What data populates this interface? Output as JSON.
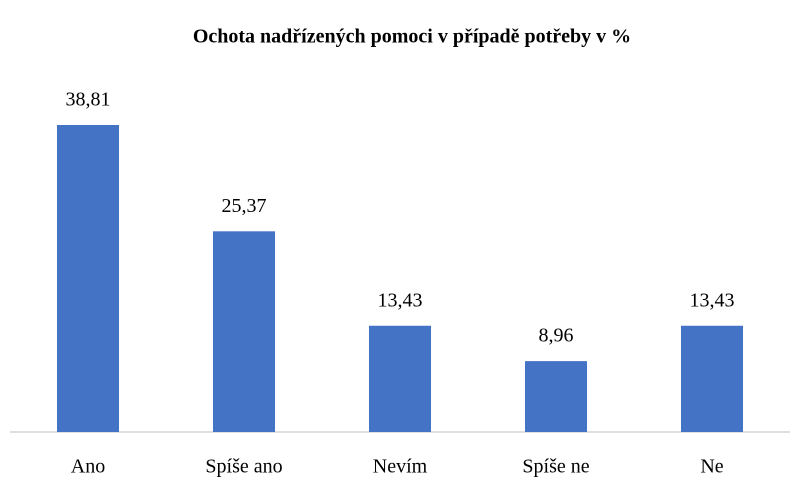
{
  "chart_data": {
    "type": "bar",
    "title": "Ochota nadřízených pomoci v případě potřeby v %",
    "categories": [
      "Ano",
      "Spíše ano",
      "Nevím",
      "Spíše ne",
      "Ne"
    ],
    "values": [
      38.81,
      25.37,
      13.43,
      8.96,
      13.43
    ],
    "value_labels": [
      "38,81",
      "25,37",
      "13,43",
      "8,96",
      "13,43"
    ],
    "color": "#4472c4"
  }
}
